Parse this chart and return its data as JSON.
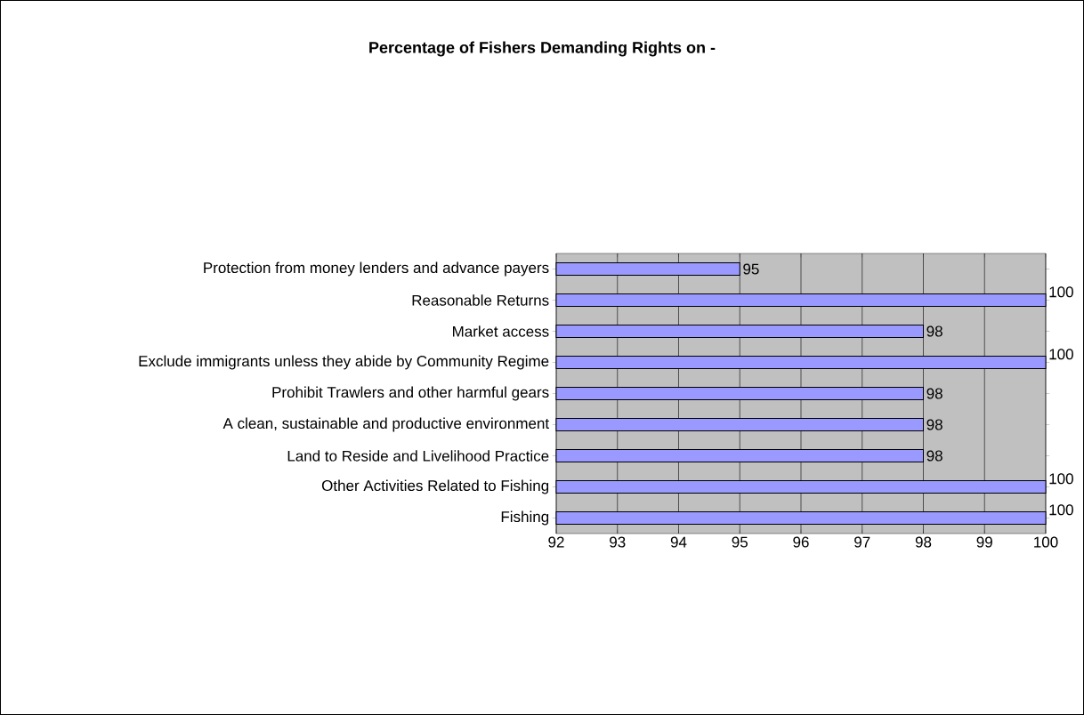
{
  "chart_data": {
    "type": "bar",
    "orientation": "horizontal",
    "title": "Percentage of Fishers Demanding Rights on -",
    "categories": [
      "Protection from money lenders and advance payers",
      "Reasonable Returns",
      "Market access",
      "Exclude immigrants unless they abide by Community Regime",
      "Prohibit Trawlers and other harmful gears",
      "A clean, sustainable and productive environment",
      "Land to Reside and Livelihood Practice",
      "Other Activities Related to Fishing",
      "Fishing"
    ],
    "values": [
      95,
      100,
      98,
      100,
      98,
      98,
      98,
      100,
      100
    ],
    "color": "#9999ff",
    "xlim": [
      92,
      100
    ],
    "xticks": [
      92,
      93,
      94,
      95,
      96,
      97,
      98,
      99,
      100
    ],
    "grid": "x",
    "data_labels": true
  }
}
